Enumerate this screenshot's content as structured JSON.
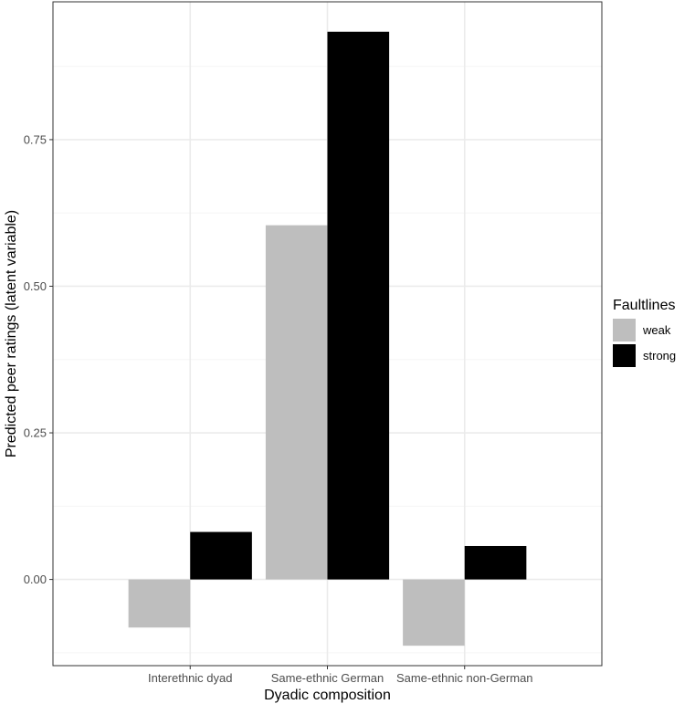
{
  "chart_data": {
    "type": "bar",
    "xlabel": "Dyadic composition",
    "ylabel": "Predicted peer ratings (latent variable)",
    "categories": [
      "Interethnic dyad",
      "Same-ethnic German",
      "Same-ethnic non-German"
    ],
    "series": [
      {
        "name": "weak",
        "color": "#bebebe",
        "values": [
          -0.082,
          0.604,
          -0.113
        ]
      },
      {
        "name": "strong",
        "color": "#000000",
        "values": [
          0.081,
          0.934,
          0.057
        ]
      }
    ],
    "ylim": [
      -0.147,
      0.985
    ],
    "yticks": [
      0.0,
      0.25,
      0.5,
      0.75
    ],
    "ytick_labels": [
      "0.00",
      "0.25",
      "0.50",
      "0.75"
    ],
    "grid": true,
    "legend": {
      "title": "Faultlines",
      "placement": "right"
    },
    "theme": {
      "panel_border": "#333333",
      "grid_major": "#ebebeb",
      "grid_minor": "#f5f5f5"
    }
  }
}
